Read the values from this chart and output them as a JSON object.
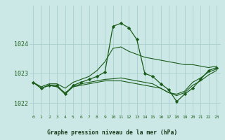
{
  "background_color": "#cce8e6",
  "plot_bg_color": "#cce8e6",
  "grid_color": "#aacfcd",
  "line_color": "#1a5c1a",
  "marker_color": "#1a5c1a",
  "title": "Graphe pression niveau de la mer (hPa)",
  "title_bg": "#5a8a5a",
  "title_fg": "#1a3a1a",
  "xlim": [
    -0.5,
    23.5
  ],
  "ylim": [
    1021.6,
    1025.3
  ],
  "yticks": [
    1022,
    1023,
    1024
  ],
  "xticks": [
    0,
    1,
    2,
    3,
    4,
    5,
    6,
    7,
    8,
    9,
    10,
    11,
    12,
    13,
    14,
    15,
    16,
    17,
    18,
    19,
    20,
    21,
    22,
    23
  ],
  "series": [
    {
      "values": [
        1022.7,
        1022.55,
        1022.65,
        1022.65,
        1022.5,
        1022.7,
        1022.8,
        1022.9,
        1023.1,
        1023.4,
        1023.85,
        1023.9,
        1023.75,
        1023.65,
        1023.55,
        1023.5,
        1023.45,
        1023.4,
        1023.35,
        1023.3,
        1023.3,
        1023.25,
        1023.2,
        1023.25
      ],
      "marker": false,
      "lw": 0.8
    },
    {
      "values": [
        1022.7,
        1022.5,
        1022.6,
        1022.55,
        1022.35,
        1022.55,
        1022.6,
        1022.65,
        1022.7,
        1022.75,
        1022.75,
        1022.75,
        1022.7,
        1022.65,
        1022.6,
        1022.55,
        1022.5,
        1022.35,
        1022.25,
        1022.35,
        1022.6,
        1022.75,
        1022.95,
        1023.1
      ],
      "marker": false,
      "lw": 0.8
    },
    {
      "values": [
        1022.7,
        1022.5,
        1022.6,
        1022.6,
        1022.3,
        1022.6,
        1022.7,
        1022.8,
        1022.9,
        1023.05,
        1024.6,
        1024.7,
        1024.55,
        1024.15,
        1023.0,
        1022.9,
        1022.65,
        1022.45,
        1022.05,
        1022.3,
        1022.5,
        1022.8,
        1023.1,
        1023.2
      ],
      "marker": true,
      "lw": 0.9
    },
    {
      "values": [
        1022.7,
        1022.5,
        1022.6,
        1022.55,
        1022.3,
        1022.55,
        1022.65,
        1022.7,
        1022.75,
        1022.8,
        1022.82,
        1022.85,
        1022.8,
        1022.75,
        1022.7,
        1022.65,
        1022.5,
        1022.35,
        1022.3,
        1022.4,
        1022.7,
        1022.85,
        1023.05,
        1023.15
      ],
      "marker": false,
      "lw": 0.8
    }
  ]
}
